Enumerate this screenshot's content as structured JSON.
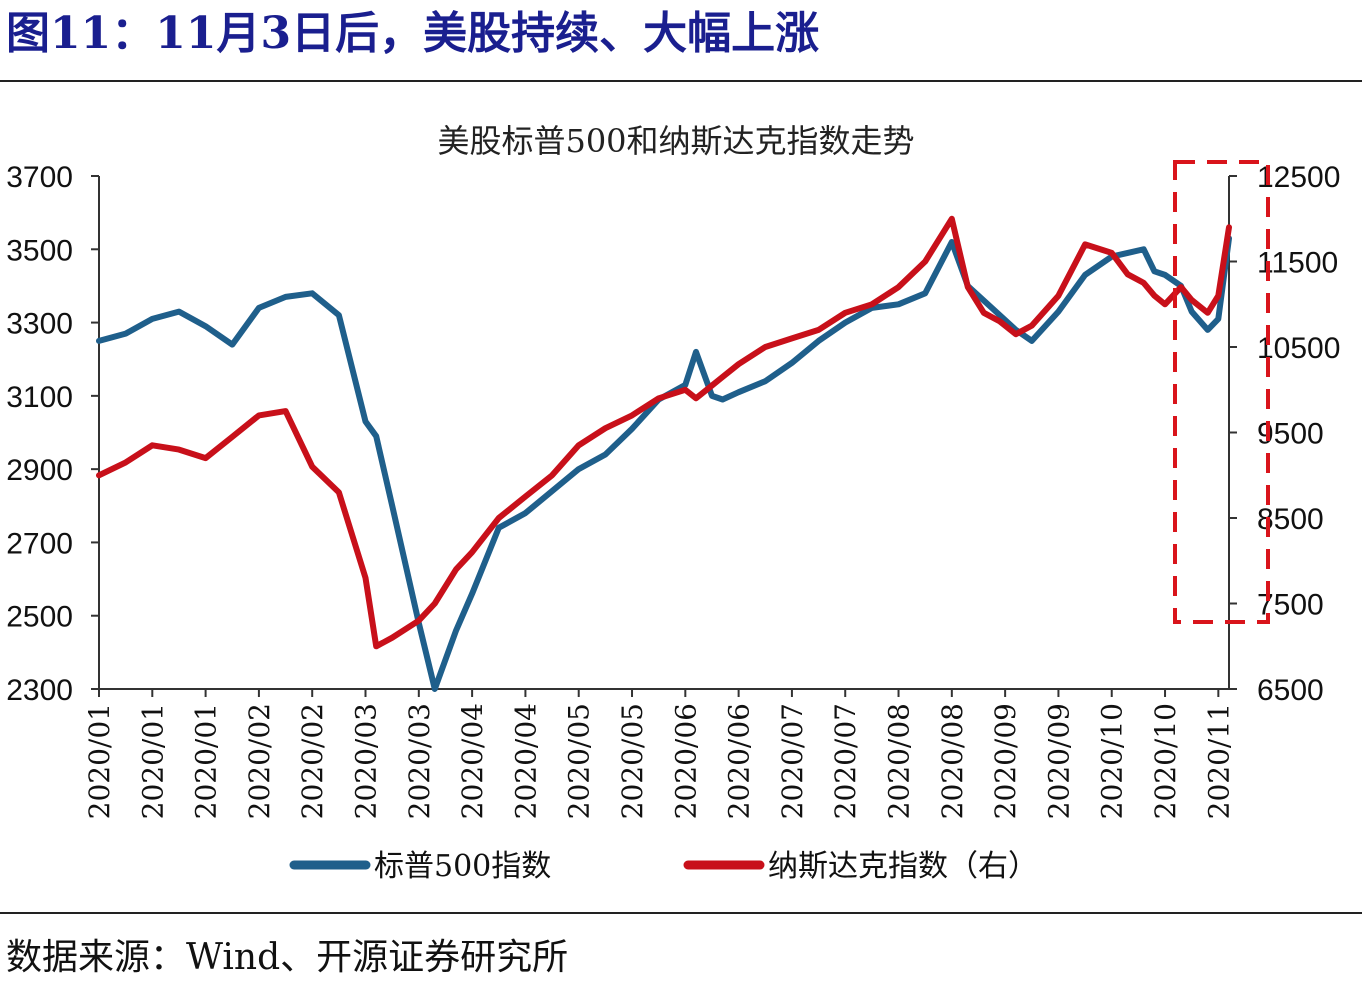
{
  "figure": {
    "title": "图11：11月3日后，美股持续、大幅上涨",
    "source": "数据来源：Wind、开源证券研究所"
  },
  "colors": {
    "title": "#1a1f8f",
    "sp500": "#1f5f8b",
    "nasdaq": "#c8101a",
    "highlight_box": "#d9141b"
  },
  "chart_data": {
    "type": "line",
    "title": "美股标普500和纳斯达克指数走势",
    "x_tick_labels": [
      "2020/01",
      "2020/01",
      "2020/01",
      "2020/02",
      "2020/02",
      "2020/03",
      "2020/03",
      "2020/04",
      "2020/04",
      "2020/05",
      "2020/05",
      "2020/06",
      "2020/06",
      "2020/07",
      "2020/07",
      "2020/08",
      "2020/08",
      "2020/09",
      "2020/09",
      "2020/10",
      "2020/10",
      "2020/11"
    ],
    "y_left": {
      "min": 2300,
      "max": 3700,
      "ticks": [
        2300,
        2500,
        2700,
        2900,
        3100,
        3300,
        3500,
        3700
      ]
    },
    "y_right": {
      "min": 6500,
      "max": 12500,
      "ticks": [
        6500,
        7500,
        8500,
        9500,
        10500,
        11500,
        12500
      ]
    },
    "legend_position": "bottom",
    "series": [
      {
        "name": "标普500指数",
        "axis": "left",
        "x": [
          0.0,
          0.5,
          1.0,
          1.5,
          2.0,
          2.5,
          3.0,
          3.5,
          4.0,
          4.5,
          5.0,
          5.2,
          5.5,
          6.0,
          6.3,
          6.7,
          7.0,
          7.5,
          8.0,
          8.5,
          9.0,
          9.5,
          10.0,
          10.5,
          11.0,
          11.2,
          11.5,
          11.7,
          12.0,
          12.5,
          13.0,
          13.5,
          14.0,
          14.5,
          15.0,
          15.5,
          16.0,
          16.3,
          16.6,
          16.9,
          17.2,
          17.5,
          18.0,
          18.5,
          19.0,
          19.3,
          19.6,
          19.8,
          20.0,
          20.3,
          20.5,
          20.8,
          21.0,
          21.2
        ],
        "y": [
          3250,
          3270,
          3310,
          3330,
          3290,
          3240,
          3340,
          3370,
          3380,
          3320,
          3030,
          2990,
          2800,
          2480,
          2300,
          2460,
          2560,
          2740,
          2780,
          2840,
          2900,
          2940,
          3010,
          3090,
          3130,
          3220,
          3100,
          3090,
          3110,
          3140,
          3190,
          3250,
          3300,
          3340,
          3350,
          3380,
          3520,
          3400,
          3360,
          3320,
          3280,
          3250,
          3330,
          3430,
          3480,
          3490,
          3500,
          3440,
          3430,
          3400,
          3330,
          3280,
          3310,
          3530
        ]
      },
      {
        "name": "纳斯达克指数（右）",
        "axis": "right",
        "x": [
          0.0,
          0.5,
          1.0,
          1.5,
          2.0,
          2.5,
          3.0,
          3.5,
          4.0,
          4.5,
          5.0,
          5.2,
          5.5,
          6.0,
          6.3,
          6.7,
          7.0,
          7.5,
          8.0,
          8.5,
          9.0,
          9.5,
          10.0,
          10.5,
          11.0,
          11.2,
          11.5,
          11.7,
          12.0,
          12.5,
          13.0,
          13.5,
          14.0,
          14.5,
          15.0,
          15.5,
          16.0,
          16.3,
          16.6,
          16.9,
          17.2,
          17.5,
          18.0,
          18.5,
          19.0,
          19.3,
          19.6,
          19.8,
          20.0,
          20.3,
          20.5,
          20.8,
          21.0,
          21.2
        ],
        "y": [
          9000,
          9150,
          9350,
          9300,
          9200,
          9450,
          9700,
          9750,
          9100,
          8800,
          7800,
          7000,
          7100,
          7300,
          7500,
          7900,
          8100,
          8500,
          8750,
          9000,
          9350,
          9550,
          9700,
          9900,
          10000,
          9900,
          10050,
          10150,
          10300,
          10500,
          10600,
          10700,
          10900,
          11000,
          11200,
          11500,
          12000,
          11200,
          10900,
          10800,
          10650,
          10750,
          11100,
          11700,
          11600,
          11350,
          11250,
          11100,
          11000,
          11200,
          11050,
          10900,
          11100,
          11900
        ]
      }
    ]
  },
  "highlight": {
    "note": "",
    "x_start": 21.05,
    "x_end": 21.9
  }
}
